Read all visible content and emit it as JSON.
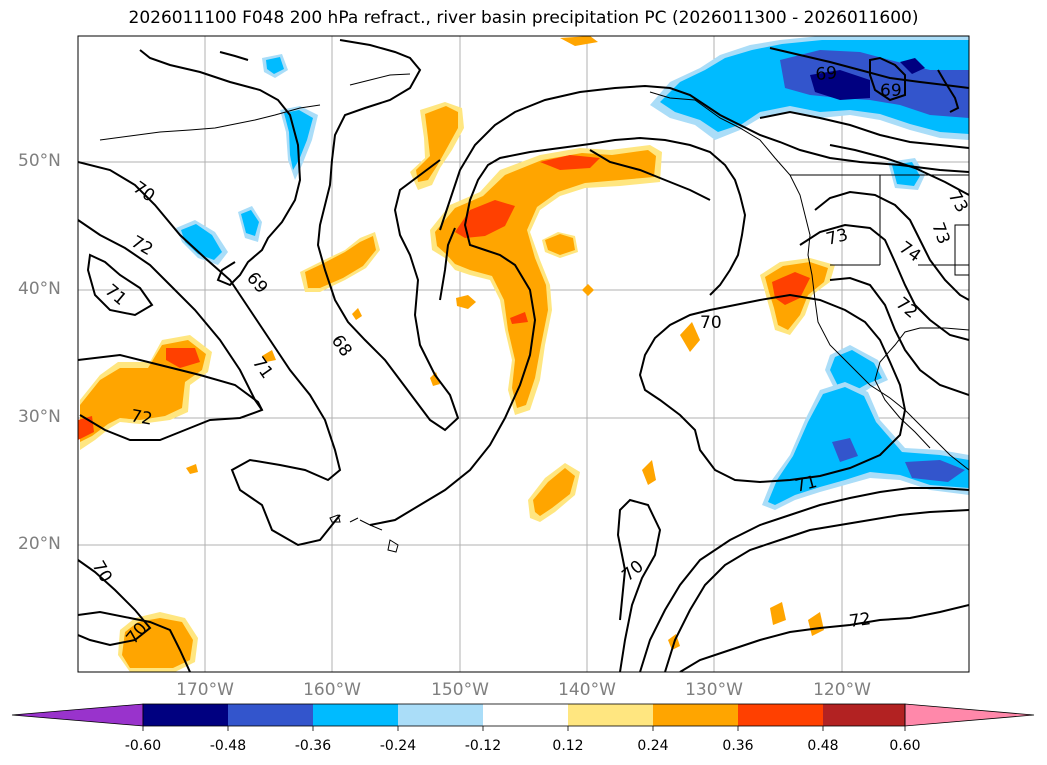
{
  "title": "2026011100 F048 200 hPa refract., river basin precipitation PC (2026011300 - 2026011600)",
  "map": {
    "lat_labels": [
      "50°N",
      "40°N",
      "30°N",
      "20°N"
    ],
    "lon_labels": [
      "170°W",
      "160°W",
      "150°W",
      "140°W",
      "130°W",
      "120°W"
    ],
    "contour_labels": [
      {
        "text": "70"
      },
      {
        "text": "72"
      },
      {
        "text": "71"
      },
      {
        "text": "69"
      },
      {
        "text": "68"
      },
      {
        "text": "71"
      },
      {
        "text": "72"
      },
      {
        "text": "70"
      },
      {
        "text": "70"
      },
      {
        "text": "70"
      },
      {
        "text": "72"
      },
      {
        "text": "71"
      },
      {
        "text": "70"
      },
      {
        "text": "73"
      },
      {
        "text": "74"
      },
      {
        "text": "72"
      },
      {
        "text": "69"
      },
      {
        "text": "69"
      },
      {
        "text": "73"
      },
      {
        "text": "73"
      }
    ]
  },
  "colorbar": {
    "colors": [
      "#9933cc",
      "#000080",
      "#3355cc",
      "#00bbff",
      "#aaddf8",
      "#ffffff",
      "#ffe680",
      "#ffa500",
      "#ff4000",
      "#b22222",
      "#ff88aa"
    ],
    "labels": [
      "-0.60",
      "-0.48",
      "-0.36",
      "-0.24",
      "-0.12",
      "0.12",
      "0.24",
      "0.36",
      "0.48",
      "0.60"
    ]
  }
}
